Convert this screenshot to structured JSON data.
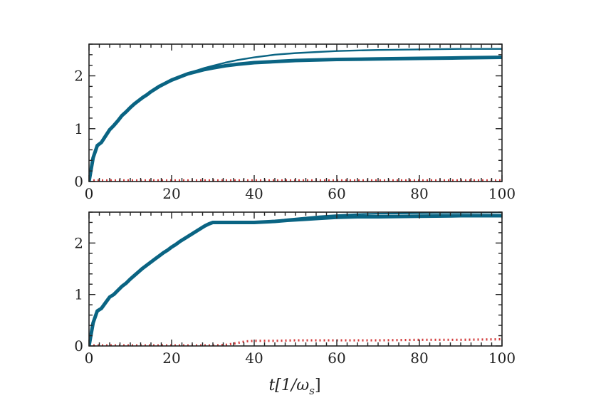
{
  "figure": {
    "xlabel": "t[1/ω",
    "xlabel_sub": "s",
    "xlabel_close": "]"
  },
  "colors": {
    "blue": "#0a6483",
    "red": "#d23a3a",
    "axis": "#222222"
  },
  "chart_data": [
    {
      "type": "line",
      "title": "",
      "xlabel": "",
      "ylabel": "",
      "xlim": [
        0,
        100
      ],
      "ylim": [
        0,
        2.6
      ],
      "grid": false,
      "xticks": [
        0,
        20,
        40,
        60,
        80,
        100
      ],
      "xtick_labels": [
        "0",
        "20",
        "40",
        "60",
        "80",
        "100"
      ],
      "yticks": [
        0,
        1,
        2
      ],
      "ytick_labels": [
        "0",
        "1",
        "2"
      ],
      "series": [
        {
          "style": "thick-solid",
          "color": "#0a6483",
          "x": [
            0,
            1,
            2,
            3,
            4,
            5,
            6,
            7,
            8,
            9,
            10,
            11,
            12,
            13,
            14,
            15,
            16,
            17,
            18,
            19,
            20,
            22,
            24,
            26,
            28,
            30,
            33,
            36,
            40,
            45,
            50,
            55,
            60,
            70,
            80,
            90,
            100
          ],
          "y": [
            0,
            0.45,
            0.68,
            0.74,
            0.86,
            0.98,
            1.06,
            1.15,
            1.25,
            1.32,
            1.4,
            1.47,
            1.53,
            1.59,
            1.64,
            1.7,
            1.75,
            1.8,
            1.84,
            1.88,
            1.92,
            1.98,
            2.04,
            2.08,
            2.12,
            2.15,
            2.19,
            2.22,
            2.25,
            2.27,
            2.29,
            2.3,
            2.31,
            2.32,
            2.33,
            2.34,
            2.35
          ]
        },
        {
          "style": "thin-solid",
          "color": "#0a6483",
          "x": [
            0,
            1,
            2,
            3,
            4,
            5,
            6,
            7,
            8,
            9,
            10,
            11,
            12,
            13,
            14,
            15,
            16,
            17,
            18,
            19,
            20,
            22,
            24,
            26,
            28,
            30,
            33,
            36,
            40,
            45,
            50,
            55,
            60,
            70,
            80,
            90,
            100
          ],
          "y": [
            0,
            0.45,
            0.68,
            0.74,
            0.86,
            0.98,
            1.06,
            1.15,
            1.25,
            1.32,
            1.4,
            1.47,
            1.53,
            1.59,
            1.64,
            1.7,
            1.75,
            1.8,
            1.84,
            1.88,
            1.92,
            1.99,
            2.05,
            2.1,
            2.15,
            2.19,
            2.25,
            2.3,
            2.35,
            2.4,
            2.43,
            2.45,
            2.47,
            2.49,
            2.5,
            2.51,
            2.51
          ]
        },
        {
          "style": "dotted",
          "color": "#d23a3a",
          "x": [
            0,
            10,
            20,
            30,
            40,
            50,
            60,
            70,
            80,
            90,
            100
          ],
          "y": [
            0.02,
            0.02,
            0.02,
            0.02,
            0.02,
            0.02,
            0.02,
            0.02,
            0.02,
            0.02,
            0.02
          ]
        }
      ]
    },
    {
      "type": "line",
      "title": "",
      "xlabel": "t[1/ω_s]",
      "ylabel": "",
      "xlim": [
        0,
        100
      ],
      "ylim": [
        0,
        2.6
      ],
      "grid": false,
      "xticks": [
        0,
        20,
        40,
        60,
        80,
        100
      ],
      "xtick_labels": [
        "0",
        "20",
        "40",
        "60",
        "80",
        "100"
      ],
      "yticks": [
        0,
        1,
        2
      ],
      "ytick_labels": [
        "0",
        "1",
        "2"
      ],
      "series": [
        {
          "style": "thick-solid",
          "color": "#0a6483",
          "x": [
            0,
            1,
            2,
            3,
            4,
            5,
            6,
            7,
            8,
            9,
            10,
            11,
            12,
            13,
            14,
            15,
            16,
            17,
            18,
            19,
            20,
            21,
            22,
            23,
            24,
            25,
            26,
            27,
            28,
            29,
            30,
            32,
            35,
            40,
            45,
            48,
            52,
            56,
            60,
            65,
            70,
            80,
            90,
            100
          ],
          "y": [
            0,
            0.45,
            0.68,
            0.73,
            0.84,
            0.95,
            1.0,
            1.08,
            1.16,
            1.22,
            1.3,
            1.37,
            1.44,
            1.51,
            1.57,
            1.63,
            1.69,
            1.75,
            1.81,
            1.86,
            1.92,
            1.97,
            2.03,
            2.08,
            2.13,
            2.18,
            2.23,
            2.28,
            2.33,
            2.37,
            2.4,
            2.4,
            2.4,
            2.4,
            2.42,
            2.44,
            2.46,
            2.48,
            2.5,
            2.51,
            2.51,
            2.52,
            2.53,
            2.53
          ]
        },
        {
          "style": "thin-solid",
          "color": "#0a6483",
          "x": [
            0,
            1,
            2,
            3,
            4,
            5,
            6,
            7,
            8,
            9,
            10,
            11,
            12,
            13,
            14,
            15,
            16,
            17,
            18,
            19,
            20,
            21,
            22,
            23,
            24,
            25,
            26,
            27,
            28,
            29,
            30,
            32,
            35,
            40,
            45,
            48,
            52,
            56,
            60,
            65,
            70,
            80,
            90,
            100
          ],
          "y": [
            0,
            0.45,
            0.68,
            0.73,
            0.84,
            0.95,
            1.0,
            1.08,
            1.16,
            1.22,
            1.3,
            1.37,
            1.44,
            1.51,
            1.57,
            1.63,
            1.69,
            1.75,
            1.81,
            1.86,
            1.92,
            1.97,
            2.03,
            2.08,
            2.13,
            2.18,
            2.23,
            2.28,
            2.33,
            2.37,
            2.4,
            2.4,
            2.4,
            2.41,
            2.43,
            2.46,
            2.49,
            2.52,
            2.54,
            2.56,
            2.57,
            2.58,
            2.59,
            2.6
          ]
        },
        {
          "style": "dotted",
          "color": "#d23a3a",
          "x": [
            0,
            10,
            20,
            30,
            33,
            36,
            38,
            40,
            45,
            50,
            60,
            70,
            80,
            90,
            100
          ],
          "y": [
            0.01,
            0.01,
            0.01,
            0.01,
            0.02,
            0.06,
            0.09,
            0.1,
            0.1,
            0.11,
            0.11,
            0.11,
            0.12,
            0.12,
            0.13
          ]
        }
      ]
    }
  ]
}
